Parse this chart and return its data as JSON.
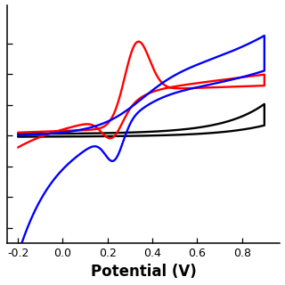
{
  "xlabel": "Potential (V)",
  "xlim": [
    -0.25,
    0.97
  ],
  "ylim": [
    -7.0,
    8.5
  ],
  "xticks": [
    -0.2,
    0.0,
    0.2,
    0.4,
    0.6,
    0.8
  ],
  "ytick_positions": [
    -6,
    -4,
    -2,
    0,
    2,
    4,
    6
  ],
  "line_colors": [
    "black",
    "red",
    "blue"
  ],
  "background_color": "#ffffff",
  "xlabel_fontsize": 12,
  "tick_fontsize": 9,
  "lw": 1.7
}
